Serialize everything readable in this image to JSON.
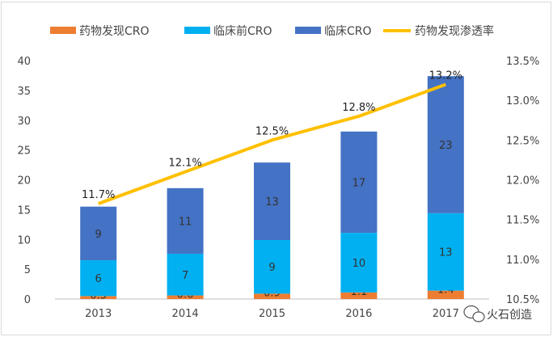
{
  "colors": {
    "discovery_cro": "#ED7D31",
    "preclinical_cro": "#00B0F0",
    "clinical_cro": "#4472C4",
    "penetration_line": "#FFC000"
  },
  "watermark": {
    "text": "火石创造",
    "icon": "wechat-bubble-icon"
  },
  "chart_data": {
    "type": "bar",
    "stacked": true,
    "categories": [
      "2013",
      "2014",
      "2015",
      "2016",
      "2017"
    ],
    "series": [
      {
        "name": "药物发现CRO",
        "type": "bar",
        "axis": "left",
        "values": [
          0.5,
          0.6,
          0.9,
          1.1,
          1.4
        ]
      },
      {
        "name": "临床前CRO",
        "type": "bar",
        "axis": "left",
        "values": [
          6,
          7,
          9,
          10,
          13
        ]
      },
      {
        "name": "临床CRO",
        "type": "bar",
        "axis": "left",
        "values": [
          9,
          11,
          13,
          17,
          23
        ]
      },
      {
        "name": "药物发现渗透率",
        "type": "line",
        "axis": "right",
        "values": [
          11.7,
          12.1,
          12.5,
          12.8,
          13.2
        ],
        "labels": [
          "11.7%",
          "12.1%",
          "12.5%",
          "12.8%",
          "13.2%"
        ]
      }
    ],
    "y_left": {
      "ylim": [
        0,
        40
      ],
      "ticks": [
        "0",
        "5",
        "10",
        "15",
        "20",
        "25",
        "30",
        "35",
        "40"
      ]
    },
    "y_right": {
      "ylim": [
        10.5,
        13.5
      ],
      "ticks": [
        "10.5%",
        "11.0%",
        "11.5%",
        "12.0%",
        "12.5%",
        "13.0%",
        "13.5%"
      ]
    },
    "legend_position": "top",
    "grid": false
  }
}
